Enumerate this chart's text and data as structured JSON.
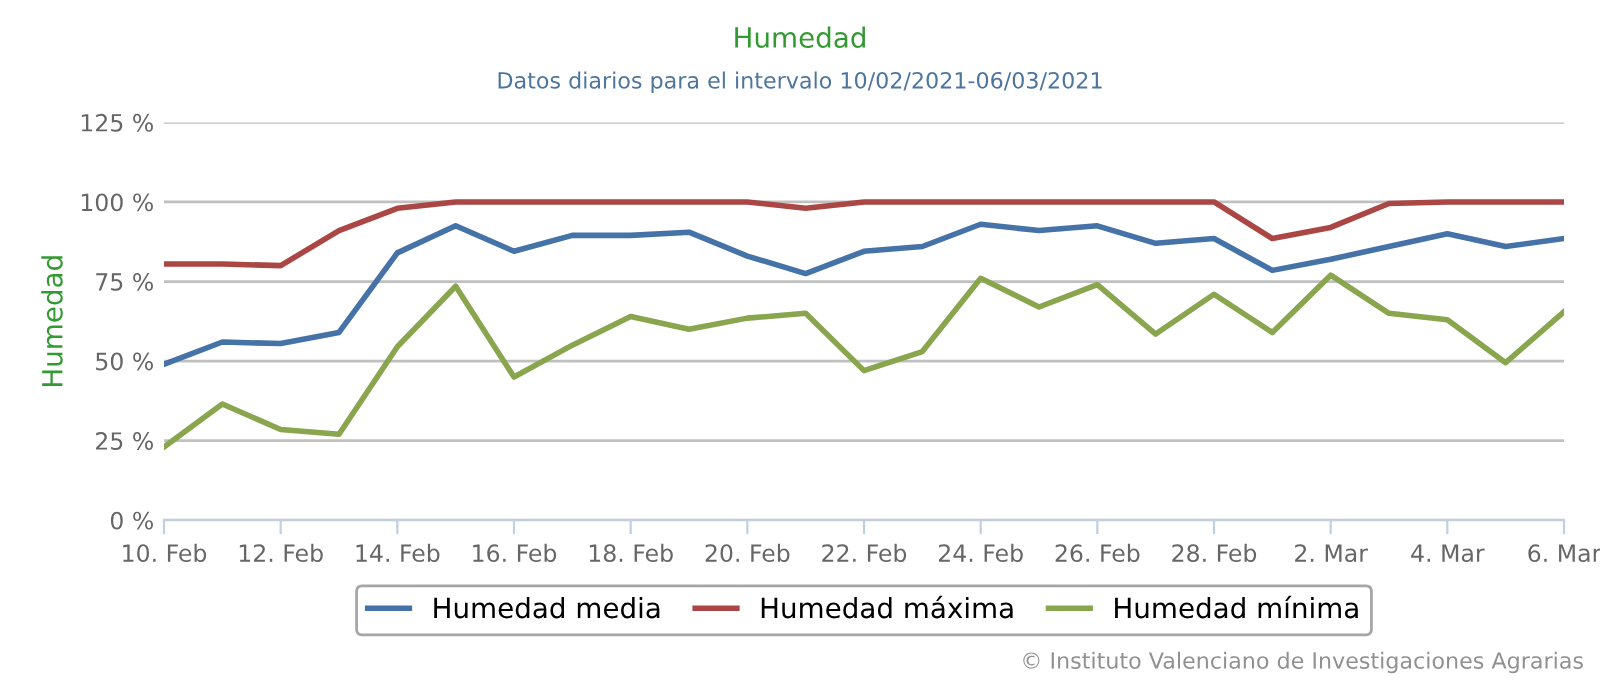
{
  "chart_data": {
    "type": "line",
    "title": "Humedad",
    "subtitle": "Datos diarios para el intervalo 10/02/2021-06/03/2021",
    "ylabel": "Humedad",
    "annotations": [
      "© Instituto Valenciano de Investigaciones Agrarias"
    ],
    "x": [
      "2021-02-10",
      "2021-02-11",
      "2021-02-12",
      "2021-02-13",
      "2021-02-14",
      "2021-02-15",
      "2021-02-16",
      "2021-02-17",
      "2021-02-18",
      "2021-02-19",
      "2021-02-20",
      "2021-02-21",
      "2021-02-22",
      "2021-02-23",
      "2021-02-24",
      "2021-02-25",
      "2021-02-26",
      "2021-02-27",
      "2021-02-28",
      "2021-03-01",
      "2021-03-02",
      "2021-03-03",
      "2021-03-04",
      "2021-03-05",
      "2021-03-06"
    ],
    "series": [
      {
        "name": "Humedad media",
        "color": "#4572a7",
        "values": [
          49,
          56,
          55.5,
          59,
          84,
          92.5,
          84.5,
          89.5,
          89.5,
          90.5,
          83,
          77.5,
          84.5,
          86,
          93,
          91,
          92.5,
          87,
          88.5,
          78.5,
          82,
          86,
          90,
          86,
          88.5
        ]
      },
      {
        "name": "Humedad máxima",
        "color": "#aa4643",
        "values": [
          80.5,
          80.5,
          80,
          91,
          98,
          100,
          100,
          100,
          100,
          100,
          100,
          98,
          100,
          100,
          100,
          100,
          100,
          100,
          100,
          88.5,
          92,
          99.5,
          100,
          100,
          100
        ]
      },
      {
        "name": "Humedad mínima",
        "color": "#89a54e",
        "values": [
          23,
          36.5,
          28.5,
          27,
          54.5,
          73.5,
          45,
          55,
          64,
          60,
          63.5,
          65,
          47,
          53,
          76,
          67,
          74,
          58.5,
          71,
          59,
          77,
          65,
          63,
          49.5,
          65.5
        ]
      }
    ],
    "xlim": [
      "2021-02-10",
      "2021-03-06"
    ],
    "xticks": [
      {
        "value": "2021-02-10",
        "label": "10. Feb"
      },
      {
        "value": "2021-02-12",
        "label": "12. Feb"
      },
      {
        "value": "2021-02-14",
        "label": "14. Feb"
      },
      {
        "value": "2021-02-16",
        "label": "16. Feb"
      },
      {
        "value": "2021-02-18",
        "label": "18. Feb"
      },
      {
        "value": "2021-02-20",
        "label": "20. Feb"
      },
      {
        "value": "2021-02-22",
        "label": "22. Feb"
      },
      {
        "value": "2021-02-24",
        "label": "24. Feb"
      },
      {
        "value": "2021-02-26",
        "label": "26. Feb"
      },
      {
        "value": "2021-02-28",
        "label": "28. Feb"
      },
      {
        "value": "2021-03-02",
        "label": "2. Mar"
      },
      {
        "value": "2021-03-04",
        "label": "4. Mar"
      },
      {
        "value": "2021-03-06",
        "label": "6. Mar"
      }
    ],
    "ylim": [
      0,
      125
    ],
    "yticks": [
      {
        "value": 0,
        "label": "0 %"
      },
      {
        "value": 25,
        "label": "25 %"
      },
      {
        "value": 50,
        "label": "50 %"
      },
      {
        "value": 75,
        "label": "75 %"
      },
      {
        "value": 100,
        "label": "100 %"
      },
      {
        "value": 125,
        "label": "125 %"
      }
    ],
    "grid": "y",
    "legend": "bottom",
    "marker": "none",
    "line_style": "solid"
  }
}
